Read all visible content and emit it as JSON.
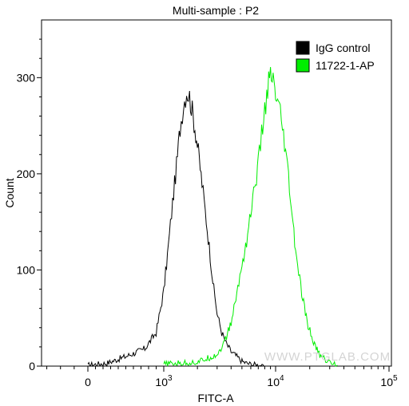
{
  "chart_data": {
    "type": "line",
    "title": "Multi-sample : P2",
    "xlabel": "FITC-A",
    "ylabel": "Count",
    "x_scale": "biexponential (log above 10^3)",
    "xlim": [
      -350,
      100000
    ],
    "ylim": [
      0,
      360
    ],
    "grid": false,
    "legend_position": "top-right",
    "y_ticks": [
      "0",
      "100",
      "200",
      "300"
    ],
    "x_ticks": [
      {
        "base": "0",
        "exp": ""
      },
      {
        "base": "10",
        "exp": "3"
      },
      {
        "base": "10",
        "exp": "4"
      },
      {
        "base": "10",
        "exp": "5"
      }
    ],
    "watermark": "WWW.PTGLAB.COM",
    "series": [
      {
        "name": "IgG control",
        "color": "#000000",
        "x": [
          0,
          250,
          500,
          750,
          900,
          1000,
          1100,
          1200,
          1300,
          1400,
          1500,
          1600,
          1700,
          1800,
          1900,
          2000,
          2200,
          2400,
          2600,
          2800,
          3000,
          3300,
          3600,
          4000,
          4500,
          5000,
          5500,
          6000,
          7000,
          8000
        ],
        "y": [
          1,
          3,
          10,
          18,
          35,
          78,
          125,
          170,
          208,
          248,
          272,
          286,
          280,
          265,
          248,
          230,
          190,
          152,
          115,
          80,
          55,
          35,
          24,
          15,
          10,
          5,
          3,
          2,
          1,
          0
        ]
      },
      {
        "name": "11722-1-AP",
        "color": "#00ee00",
        "x": [
          1000,
          2000,
          3000,
          3500,
          4000,
          4500,
          5000,
          5500,
          6000,
          6500,
          7000,
          7500,
          8000,
          8500,
          9000,
          9500,
          10000,
          11000,
          12000,
          13000,
          14000,
          15000,
          17000,
          19000,
          22000,
          25000,
          30000,
          35000
        ],
        "y": [
          2,
          4,
          12,
          25,
          45,
          75,
          105,
          130,
          160,
          185,
          210,
          240,
          265,
          290,
          300,
          295,
          280,
          260,
          230,
          195,
          155,
          120,
          75,
          45,
          22,
          10,
          4,
          1
        ]
      }
    ]
  }
}
